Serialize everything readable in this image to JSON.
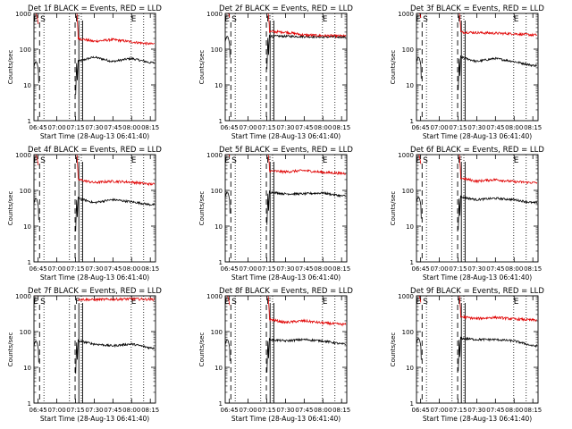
{
  "chart_data": [
    {
      "title": "Det 1f BLACK = Events, RED = LLD",
      "ylabel": "Counts/sec",
      "xlabel": "Start Time (28-Aug-13 06:41:40)",
      "type": "line",
      "ylim": [
        1,
        1000
      ],
      "yscale": "log",
      "y_ticks": [
        "1",
        "10",
        "100",
        "1000"
      ],
      "x_ticks": [
        "06:45",
        "07:00",
        "07:15",
        "07:30",
        "07:45",
        "08:00",
        "08:15"
      ],
      "series": [
        {
          "color": "#000000",
          "level_min": [
            16,
            5,
            45,
            55,
            48,
            45,
            56,
            46,
            42
          ],
          "level_time": [
            "07:17",
            "07:18",
            "07:19",
            "07:30",
            "07:45",
            "07:55",
            "08:00",
            "08:10",
            "08:19"
          ]
        },
        {
          "color": "#e00000",
          "level_min": [
            18,
            10,
            200,
            175,
            165,
            170,
            185,
            160,
            140
          ],
          "level_time": [
            "07:17",
            "07:18",
            "07:19",
            "07:30",
            "07:45",
            "07:55",
            "08:00",
            "08:10",
            "08:19"
          ]
        }
      ],
      "markers": [
        "E",
        "S",
        "F",
        "E"
      ]
    },
    {
      "title": "Det 2f BLACK = Events, RED = LLD",
      "ylabel": "Counts/sec",
      "xlabel": "Start Time (28-Aug-13 06:41:40)",
      "type": "line",
      "ylim": [
        1,
        1000
      ],
      "yscale": "log",
      "y_ticks": [
        "1",
        "10",
        "100",
        "1000"
      ],
      "x_ticks": [
        "06:45",
        "07:00",
        "07:15",
        "07:30",
        "07:45",
        "08:00",
        "08:15"
      ],
      "series": [
        {
          "color": "#000000"
        },
        {
          "color": "#e00000"
        }
      ],
      "markers": [
        "E",
        "S",
        "F",
        "E"
      ]
    },
    {
      "title": "Det 3f BLACK = Events, RED = LLD",
      "ylabel": "Counts/sec",
      "xlabel": "Start Time (28-Aug-13 06:41:40)",
      "type": "line",
      "ylim": [
        1,
        1000
      ],
      "yscale": "log",
      "y_ticks": [
        "1",
        "10",
        "100",
        "1000"
      ],
      "x_ticks": [
        "06:45",
        "07:00",
        "07:15",
        "07:30",
        "07:45",
        "08:00",
        "08:15"
      ],
      "series": [
        {
          "color": "#000000"
        },
        {
          "color": "#e00000"
        }
      ],
      "markers": [
        "E",
        "S",
        "F",
        "E"
      ]
    },
    {
      "title": "Det 4f BLACK = Events, RED = LLD",
      "ylabel": "Counts/sec",
      "xlabel": "Start Time (28-Aug-13 06:41:40)",
      "type": "line",
      "ylim": [
        1,
        1000
      ],
      "yscale": "log",
      "y_ticks": [
        "1",
        "10",
        "100",
        "1000"
      ],
      "x_ticks": [
        "06:45",
        "07:00",
        "07:15",
        "07:30",
        "07:45",
        "08:00",
        "08:15"
      ],
      "series": [
        {
          "color": "#000000"
        },
        {
          "color": "#e00000"
        }
      ],
      "markers": [
        "E",
        "S",
        "F",
        "E"
      ]
    },
    {
      "title": "Det 5f BLACK = Events, RED = LLD",
      "ylabel": "Counts/sec",
      "xlabel": "Start Time (28-Aug-13 06:41:40)",
      "type": "line",
      "ylim": [
        1,
        1000
      ],
      "yscale": "log",
      "y_ticks": [
        "1",
        "10",
        "100",
        "1000"
      ],
      "x_ticks": [
        "06:45",
        "07:00",
        "07:15",
        "07:30",
        "07:45",
        "08:00",
        "08:15"
      ],
      "series": [
        {
          "color": "#000000"
        },
        {
          "color": "#e00000"
        }
      ],
      "markers": [
        "E",
        "S",
        "F",
        "E"
      ]
    },
    {
      "title": "Det 6f BLACK = Events, RED = LLD",
      "ylabel": "Counts/sec",
      "xlabel": "Start Time (28-Aug-13 06:41:40)",
      "type": "line",
      "ylim": [
        1,
        1000
      ],
      "yscale": "log",
      "y_ticks": [
        "1",
        "10",
        "100",
        "1000"
      ],
      "x_ticks": [
        "06:45",
        "07:00",
        "07:15",
        "07:30",
        "07:45",
        "08:00",
        "08:15"
      ],
      "series": [
        {
          "color": "#000000"
        },
        {
          "color": "#e00000"
        }
      ],
      "markers": [
        "E",
        "S",
        "F",
        "E"
      ]
    },
    {
      "title": "Det 7f BLACK = Events, RED = LLD",
      "ylabel": "Counts/sec",
      "xlabel": "Start Time (28-Aug-13 06:41:40)",
      "type": "line",
      "ylim": [
        1,
        1000
      ],
      "yscale": "log",
      "y_ticks": [
        "1",
        "10",
        "100",
        "1000"
      ],
      "x_ticks": [
        "06:45",
        "07:00",
        "07:15",
        "07:30",
        "07:45",
        "08:00",
        "08:15"
      ],
      "series": [
        {
          "color": "#000000"
        },
        {
          "color": "#e00000"
        }
      ],
      "markers": [
        "E",
        "S",
        "F",
        "E"
      ]
    },
    {
      "title": "Det 8f BLACK = Events, RED = LLD",
      "ylabel": "Counts/sec",
      "xlabel": "Start Time (28-Aug-13 06:41:40)",
      "type": "line",
      "ylim": [
        1,
        1000
      ],
      "yscale": "log",
      "y_ticks": [
        "1",
        "10",
        "100",
        "1000"
      ],
      "x_ticks": [
        "06:45",
        "07:00",
        "07:15",
        "07:30",
        "07:45",
        "08:00",
        "08:15"
      ],
      "series": [
        {
          "color": "#000000"
        },
        {
          "color": "#e00000"
        }
      ],
      "markers": [
        "E",
        "S",
        "F",
        "E"
      ]
    },
    {
      "title": "Det 9f BLACK = Events, RED = LLD",
      "ylabel": "Counts/sec",
      "xlabel": "Start Time (28-Aug-13 06:41:40)",
      "type": "line",
      "ylim": [
        1,
        1000
      ],
      "yscale": "log",
      "y_ticks": [
        "1",
        "10",
        "100",
        "1000"
      ],
      "x_ticks": [
        "06:45",
        "07:00",
        "07:15",
        "07:30",
        "07:45",
        "08:00",
        "08:15"
      ],
      "series": [
        {
          "color": "#000000"
        },
        {
          "color": "#e00000"
        }
      ],
      "markers": [
        "E",
        "S",
        "F",
        "E"
      ]
    }
  ],
  "panel_levels": [
    {
      "black": [
        45,
        60,
        45,
        55,
        42
      ],
      "red": [
        200,
        165,
        185,
        160,
        140
      ],
      "spike_red": true
    },
    {
      "black": [
        230,
        230,
        225,
        220,
        220
      ],
      "red": [
        310,
        300,
        250,
        240,
        235
      ],
      "spike_red": true
    },
    {
      "black": [
        60,
        45,
        55,
        45,
        35
      ],
      "red": [
        300,
        290,
        280,
        270,
        250
      ],
      "spike_red": true
    },
    {
      "black": [
        60,
        45,
        55,
        48,
        40
      ],
      "red": [
        200,
        165,
        180,
        170,
        150
      ],
      "spike_red": true
    },
    {
      "black": [
        90,
        80,
        80,
        85,
        70
      ],
      "red": [
        350,
        330,
        360,
        320,
        300
      ],
      "spike_red": true
    },
    {
      "black": [
        65,
        55,
        60,
        55,
        45
      ],
      "red": [
        220,
        180,
        200,
        175,
        165
      ],
      "spike_red": true
    },
    {
      "black": [
        55,
        45,
        40,
        45,
        35
      ],
      "red": [
        800,
        780,
        800,
        820,
        800
      ],
      "spike_red": false
    },
    {
      "black": [
        60,
        55,
        60,
        55,
        45
      ],
      "red": [
        220,
        180,
        200,
        175,
        160
      ],
      "spike_red": true
    },
    {
      "black": [
        65,
        60,
        60,
        55,
        40
      ],
      "red": [
        260,
        230,
        250,
        225,
        210
      ],
      "spike_red": true
    }
  ]
}
